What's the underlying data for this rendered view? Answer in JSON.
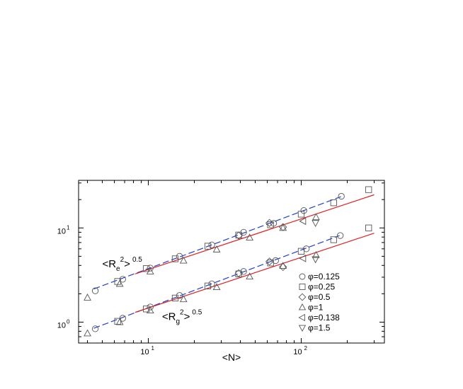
{
  "chart_data": {
    "type": "scatter",
    "xscale": "log",
    "yscale": "log",
    "xlim": [
      3.5,
      350
    ],
    "ylim": [
      0.6,
      32
    ],
    "xlabel": "<N>",
    "ylabel": "",
    "grid": false,
    "legend_position": "bottom-right",
    "x_ticks": [
      {
        "value": 10,
        "base": "10",
        "exp": "1"
      },
      {
        "value": 100,
        "base": "10",
        "exp": "2"
      }
    ],
    "y_ticks": [
      {
        "value": 1,
        "base": "10",
        "exp": "0"
      },
      {
        "value": 10,
        "base": "10",
        "exp": "1"
      }
    ],
    "annotations": [
      {
        "id": "re",
        "main": "<R",
        "sub": "e",
        "sup": "2",
        "tail": ">",
        "power": "0.5",
        "x": 5.0,
        "y": 3.8
      },
      {
        "id": "rg",
        "main": "<R",
        "sub": "g",
        "sup": "2",
        "tail": ">",
        "power": "0.5",
        "x": 12.3,
        "y": 1.05
      }
    ],
    "series": [
      {
        "name": "φ=0.125",
        "marker": "circle",
        "points": [
          [
            4.5,
            2.15
          ],
          [
            6.8,
            2.85
          ],
          [
            10.3,
            3.75
          ],
          [
            16.0,
            5.0
          ],
          [
            26.0,
            6.6
          ],
          [
            42.0,
            9.0
          ],
          [
            66.0,
            11.2
          ],
          [
            104.0,
            15.3
          ],
          [
            183.0,
            21.7
          ],
          [
            4.5,
            0.85
          ],
          [
            6.8,
            1.1
          ],
          [
            10.3,
            1.45
          ],
          [
            16.0,
            1.92
          ],
          [
            26.0,
            2.55
          ],
          [
            42.0,
            3.45
          ],
          [
            68.0,
            4.5
          ],
          [
            108.0,
            6.0
          ],
          [
            180.0,
            8.3
          ]
        ]
      },
      {
        "name": "φ=0.25",
        "marker": "square",
        "points": [
          [
            6.3,
            2.7
          ],
          [
            9.7,
            3.7
          ],
          [
            15.0,
            4.7
          ],
          [
            24.5,
            6.4
          ],
          [
            39.0,
            8.4
          ],
          [
            63.0,
            10.8
          ],
          [
            100.0,
            14.0
          ],
          [
            163.0,
            18.5
          ],
          [
            276.0,
            25.5
          ],
          [
            6.3,
            1.02
          ],
          [
            9.7,
            1.38
          ],
          [
            15.0,
            1.8
          ],
          [
            24.5,
            2.42
          ],
          [
            39.0,
            3.25
          ],
          [
            63.0,
            4.25
          ],
          [
            100.0,
            5.65
          ],
          [
            163.0,
            7.5
          ],
          [
            276.0,
            10.0
          ]
        ]
      },
      {
        "name": "φ=0.5",
        "marker": "diamond",
        "points": [
          [
            39.0,
            8.3
          ],
          [
            62.0,
            11.3
          ],
          [
            76.0,
            10.2
          ],
          [
            39.0,
            3.3
          ],
          [
            62.0,
            4.4
          ],
          [
            76.0,
            3.85
          ]
        ]
      },
      {
        "name": "φ=1",
        "marker": "triangle-up",
        "points": [
          [
            4.0,
            1.82
          ],
          [
            6.5,
            2.55
          ],
          [
            10.3,
            3.45
          ],
          [
            17.0,
            4.5
          ],
          [
            28.0,
            5.9
          ],
          [
            46.0,
            7.9
          ],
          [
            76.0,
            10.0
          ],
          [
            125.0,
            13.0
          ],
          [
            4.0,
            0.76
          ],
          [
            6.5,
            1.0
          ],
          [
            10.3,
            1.33
          ],
          [
            17.0,
            1.75
          ],
          [
            28.0,
            2.35
          ],
          [
            46.0,
            3.05
          ],
          [
            76.0,
            3.95
          ],
          [
            125.0,
            5.15
          ]
        ]
      },
      {
        "name": "φ=0.138",
        "marker": "triangle-left",
        "points": [
          [
            103.0,
            11.8
          ],
          [
            103.0,
            4.75
          ]
        ]
      },
      {
        "name": "φ=1.5",
        "marker": "triangle-down",
        "points": [
          [
            124.0,
            11.3
          ],
          [
            124.0,
            4.65
          ]
        ]
      }
    ],
    "fit_lines": [
      {
        "style": "dashed",
        "color": "#1f3fd0",
        "x": [
          4.4,
          182.0
        ],
        "y": [
          2.25,
          21.5
        ]
      },
      {
        "style": "solid",
        "color": "#e02020",
        "x": [
          8.2,
          300.0
        ],
        "y": [
          3.25,
          22.5
        ]
      },
      {
        "style": "dashed",
        "color": "#1f3fd0",
        "x": [
          4.4,
          178.0
        ],
        "y": [
          0.86,
          8.3
        ]
      },
      {
        "style": "solid",
        "color": "#e02020",
        "x": [
          8.2,
          300.0
        ],
        "y": [
          1.27,
          8.8
        ]
      }
    ]
  }
}
